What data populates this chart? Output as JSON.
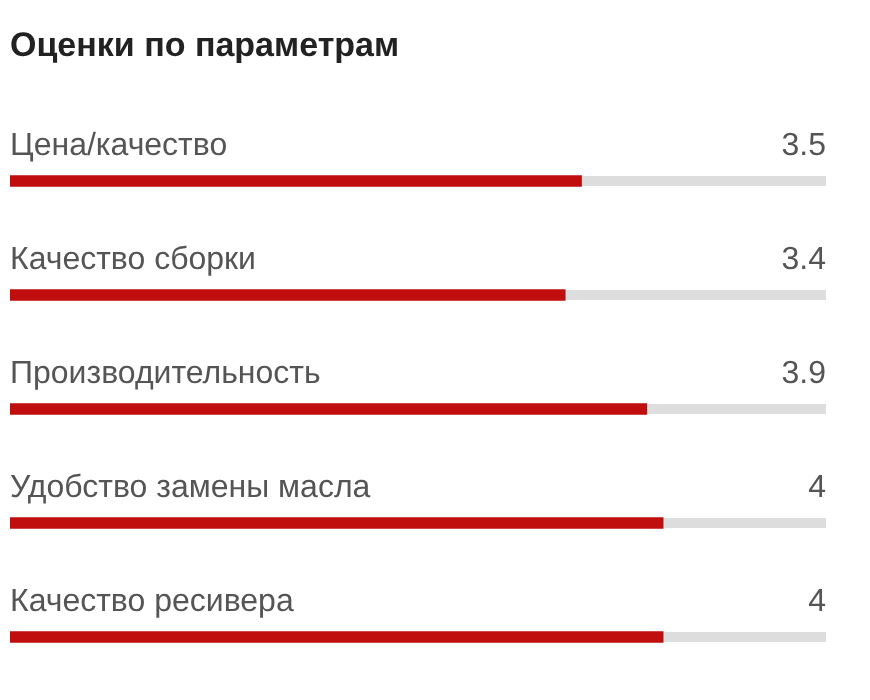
{
  "chart_data": {
    "type": "bar",
    "orientation": "horizontal",
    "title": "Оценки по параметрам",
    "categories": [
      "Цена/качество",
      "Качество сборки",
      "Производительность",
      "Удобство замены масла",
      "Качество ресивера"
    ],
    "values": [
      3.5,
      3.4,
      3.9,
      4,
      4
    ],
    "color": "#c00d0d",
    "xlim": [
      0,
      5
    ],
    "tick_labels": false,
    "legend": false,
    "data_labels": true
  }
}
